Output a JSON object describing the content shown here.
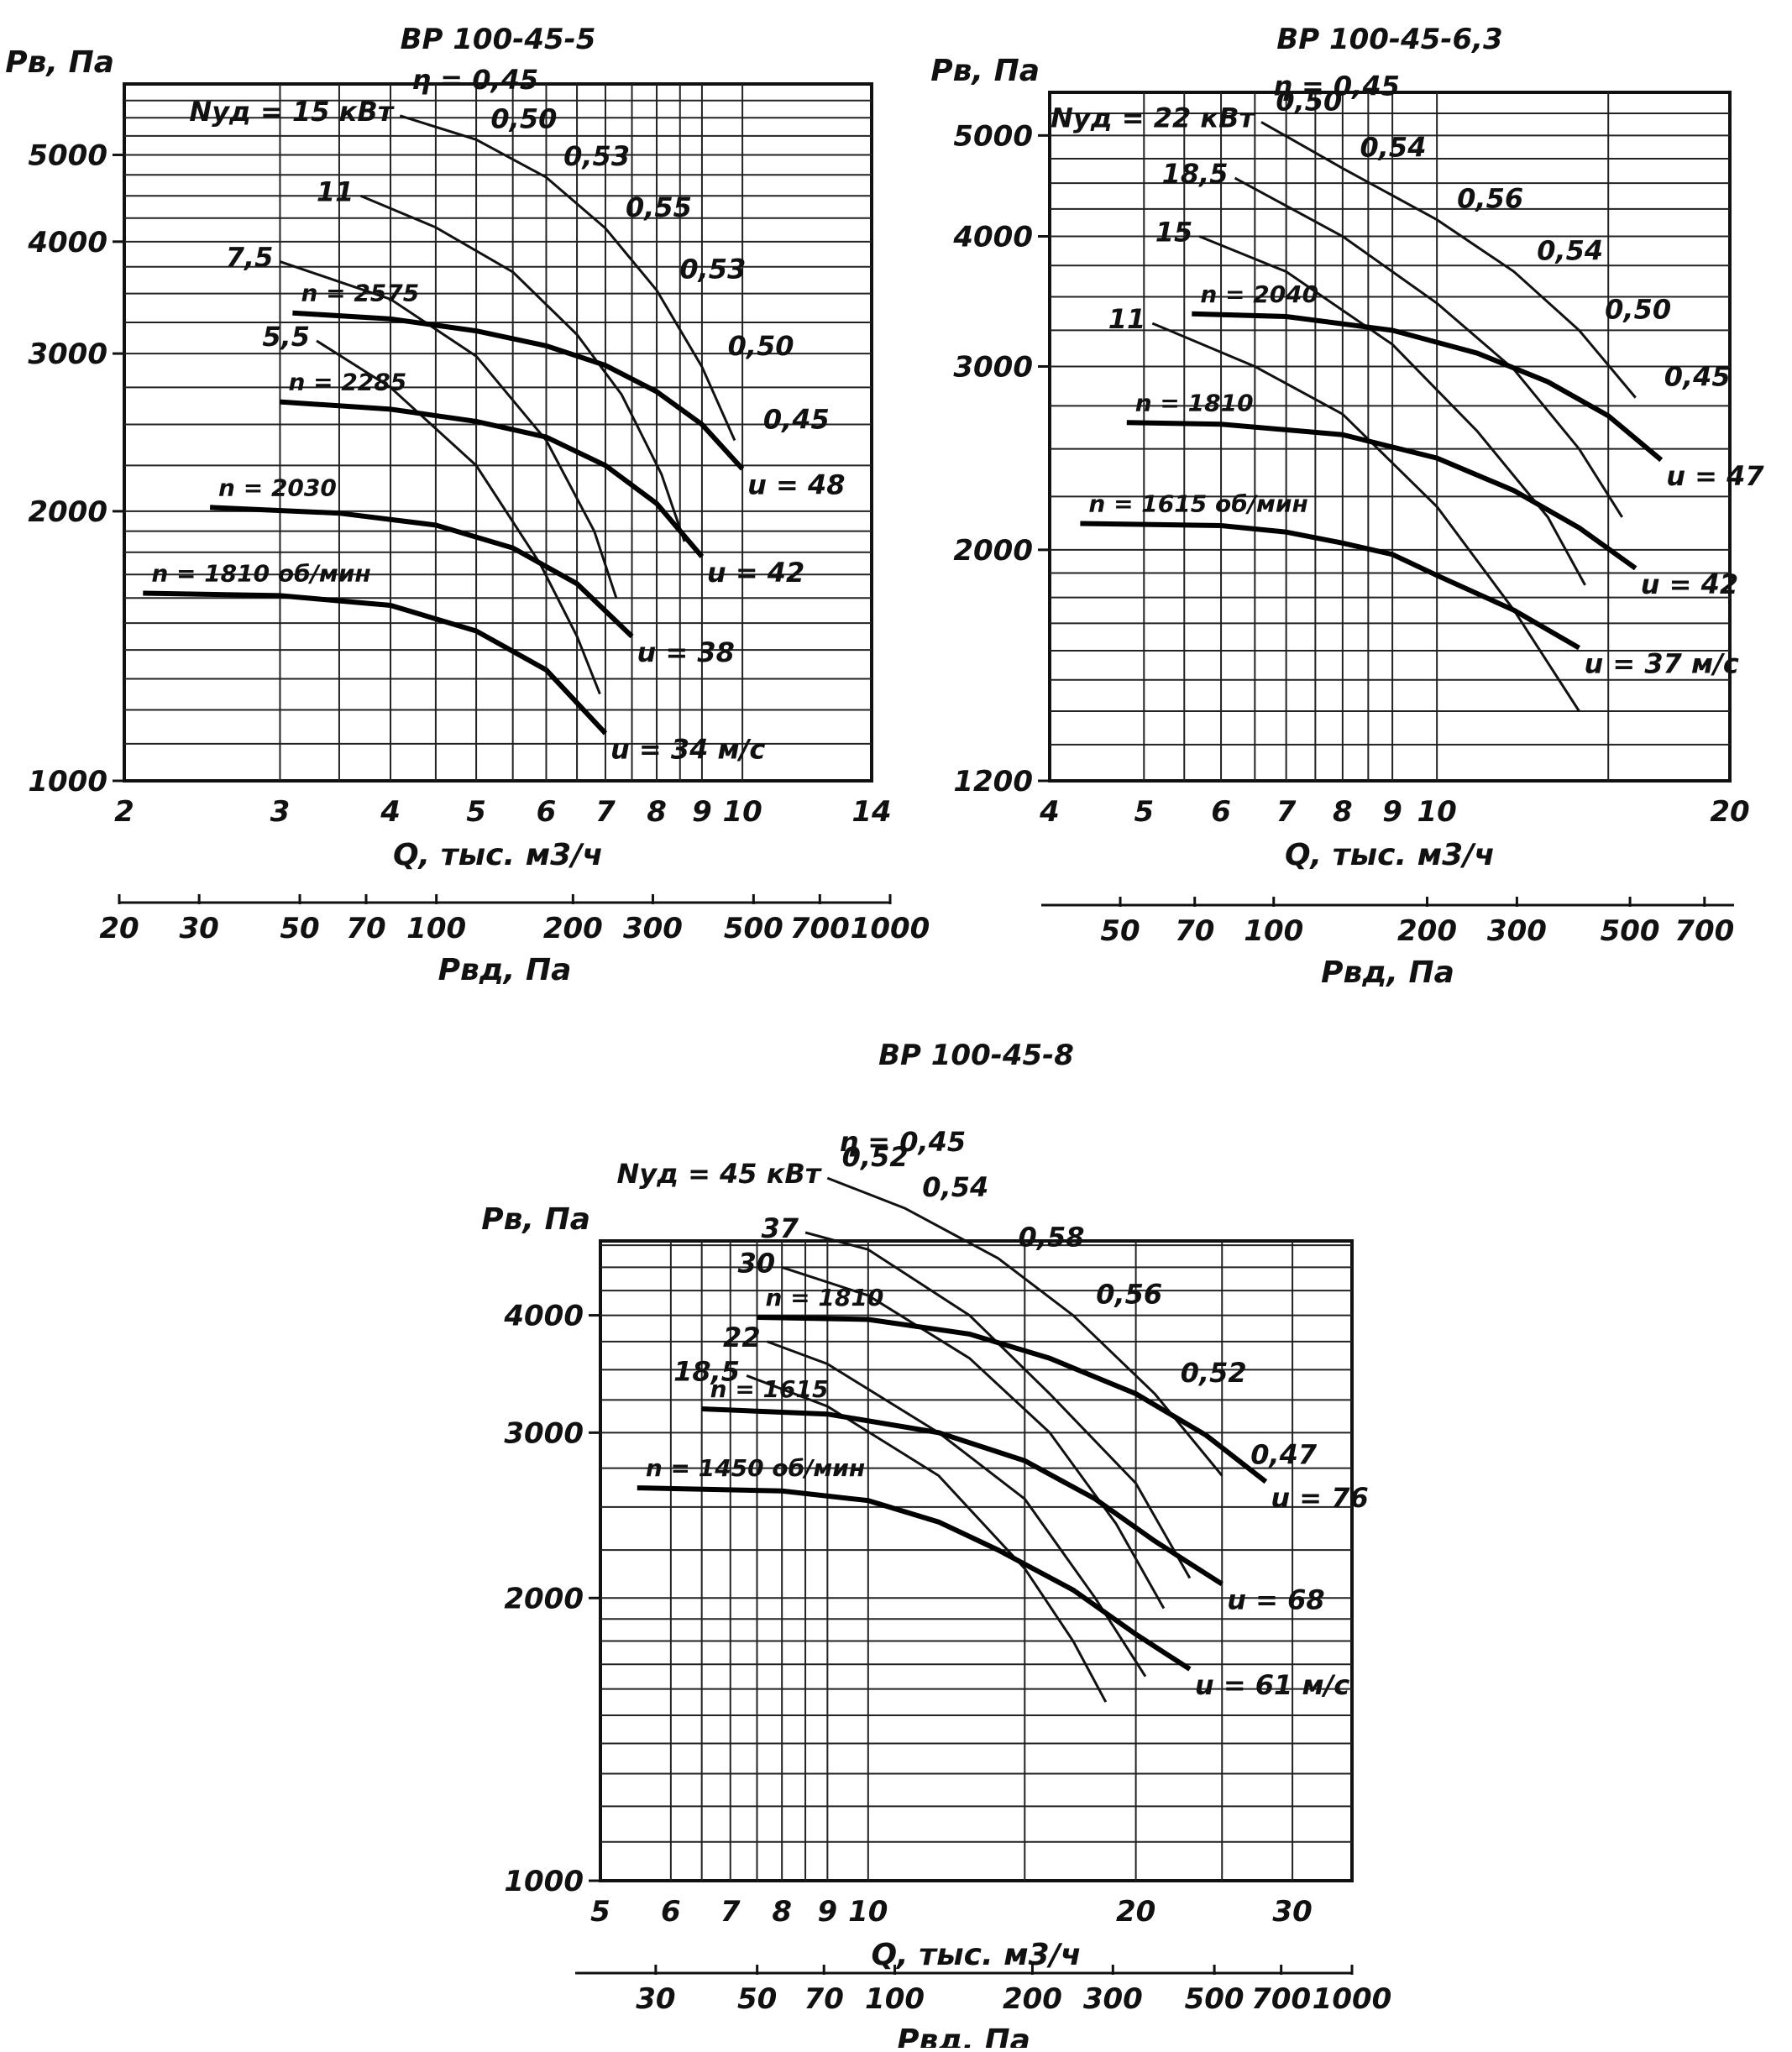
{
  "chart_data": [
    {
      "type": "line",
      "title": "ВР 100-45-5",
      "ylabel": "Pв, Па",
      "xlabel": "Q, тыс. м3/ч",
      "x2label": "Pвд, Па",
      "xscale": "log",
      "yscale": "log",
      "xlim": [
        2,
        14
      ],
      "ylim": [
        1000,
        6000
      ],
      "x_ticks": [
        "2",
        "3",
        "4",
        "5",
        "6",
        "7",
        "8",
        "9",
        "10",
        "14"
      ],
      "y_ticks": [
        "1000",
        "2000",
        "3000",
        "4000",
        "5000"
      ],
      "pvd_ticks": [
        "20",
        "30",
        "50",
        "70",
        "100",
        "200",
        "300",
        "500",
        "700",
        "1000"
      ],
      "series": [
        {
          "name": "n = 1810 об/мин",
          "points": [
            [
              2.1,
              1620
            ],
            [
              3,
              1610
            ],
            [
              4,
              1570
            ],
            [
              5,
              1470
            ],
            [
              6,
              1330
            ],
            [
              7,
              1130
            ]
          ]
        },
        {
          "name": "n = 2030",
          "points": [
            [
              2.5,
              2020
            ],
            [
              3.5,
              1990
            ],
            [
              4.5,
              1930
            ],
            [
              5.5,
              1820
            ],
            [
              6.5,
              1660
            ],
            [
              7.5,
              1450
            ]
          ]
        },
        {
          "name": "n = 2285",
          "points": [
            [
              3,
              2650
            ],
            [
              4,
              2600
            ],
            [
              5,
              2520
            ],
            [
              6,
              2420
            ],
            [
              7,
              2250
            ],
            [
              8,
              2040
            ],
            [
              9,
              1780
            ]
          ]
        },
        {
          "name": "n = 2575",
          "points": [
            [
              3.1,
              3330
            ],
            [
              4,
              3280
            ],
            [
              5,
              3180
            ],
            [
              6,
              3060
            ],
            [
              7,
              2910
            ],
            [
              8,
              2720
            ],
            [
              9,
              2500
            ],
            [
              10,
              2230
            ]
          ]
        }
      ],
      "iso_power": [
        {
          "label": "15",
          "prefix": "Nуд = ",
          "unit": "кВт",
          "points": [
            [
              4.1,
              5530
            ],
            [
              5,
              5200
            ],
            [
              6,
              4720
            ],
            [
              7,
              4140
            ],
            [
              8,
              3530
            ],
            [
              9,
              2900
            ],
            [
              9.8,
              2400
            ]
          ]
        },
        {
          "label": "11",
          "points": [
            [
              3.7,
              4500
            ],
            [
              4.5,
              4150
            ],
            [
              5.5,
              3700
            ],
            [
              6.5,
              3150
            ],
            [
              7.3,
              2700
            ],
            [
              8.1,
              2200
            ],
            [
              8.6,
              1850
            ]
          ]
        },
        {
          "label": "7,5",
          "points": [
            [
              3,
              3800
            ],
            [
              4,
              3450
            ],
            [
              5,
              2980
            ],
            [
              6,
              2400
            ],
            [
              6.8,
              1900
            ],
            [
              7.2,
              1600
            ]
          ]
        },
        {
          "label": "5,5",
          "points": [
            [
              3.3,
              3100
            ],
            [
              4,
              2750
            ],
            [
              5,
              2250
            ],
            [
              5.9,
              1750
            ],
            [
              6.5,
              1450
            ],
            [
              6.9,
              1250
            ]
          ]
        }
      ],
      "iso_efficiency": [
        {
          "label": "0,45",
          "prefix": "η = "
        },
        {
          "label": "0,50"
        },
        {
          "label": "0,53"
        },
        {
          "label": "0,55"
        },
        {
          "label": "0,53"
        },
        {
          "label": "0,50"
        },
        {
          "label": "0,45"
        }
      ],
      "tip_speed": [
        "u = 34 м/с",
        "u = 38",
        "u = 42",
        "u = 48"
      ]
    },
    {
      "type": "line",
      "title": "ВР 100-45-6,3",
      "ylabel": "Pв, Па",
      "xlabel": "Q, тыс. м3/ч",
      "x2label": "Pвд, Па",
      "xscale": "log",
      "yscale": "log",
      "xlim": [
        4,
        20
      ],
      "ylim": [
        1200,
        5500
      ],
      "x_ticks": [
        "4",
        "5",
        "6",
        "7",
        "8",
        "9",
        "10",
        "20"
      ],
      "y_ticks": [
        "1200",
        "2000",
        "3000",
        "4000",
        "5000"
      ],
      "pvd_ticks": [
        "50",
        "70",
        "100",
        "200",
        "300",
        "500",
        "700"
      ],
      "series": [
        {
          "name": "n = 1615 об/мин",
          "points": [
            [
              4.3,
              2120
            ],
            [
              6,
              2110
            ],
            [
              7,
              2080
            ],
            [
              8,
              2030
            ],
            [
              9,
              1980
            ],
            [
              10,
              1890
            ],
            [
              12,
              1750
            ],
            [
              14,
              1610
            ]
          ]
        },
        {
          "name": "n = 1810",
          "points": [
            [
              4.8,
              2650
            ],
            [
              6,
              2640
            ],
            [
              8,
              2580
            ],
            [
              10,
              2450
            ],
            [
              12,
              2280
            ],
            [
              14,
              2100
            ],
            [
              16,
              1920
            ]
          ]
        },
        {
          "name": "n = 2040",
          "points": [
            [
              5.6,
              3370
            ],
            [
              7,
              3350
            ],
            [
              9,
              3250
            ],
            [
              11,
              3090
            ],
            [
              13,
              2900
            ],
            [
              15,
              2690
            ],
            [
              17,
              2440
            ]
          ]
        }
      ],
      "iso_power": [
        {
          "label": "22",
          "prefix": "Nуд = ",
          "unit": "кВт",
          "points": [
            [
              6.6,
              5150
            ],
            [
              8,
              4650
            ],
            [
              10,
              4150
            ],
            [
              12,
              3700
            ],
            [
              14,
              3250
            ],
            [
              16,
              2800
            ]
          ]
        },
        {
          "label": "18,5",
          "points": [
            [
              6.2,
              4550
            ],
            [
              8,
              4000
            ],
            [
              10,
              3450
            ],
            [
              12,
              2980
            ],
            [
              14,
              2500
            ],
            [
              15.5,
              2150
            ]
          ]
        },
        {
          "label": "15",
          "points": [
            [
              5.7,
              4000
            ],
            [
              7,
              3700
            ],
            [
              9,
              3150
            ],
            [
              11,
              2600
            ],
            [
              13,
              2150
            ],
            [
              14.2,
              1850
            ]
          ]
        },
        {
          "label": "11",
          "points": [
            [
              5.1,
              3300
            ],
            [
              6.5,
              3000
            ],
            [
              8,
              2700
            ],
            [
              10,
              2200
            ],
            [
              12,
              1750
            ],
            [
              14,
              1400
            ]
          ]
        }
      ],
      "iso_efficiency": [
        {
          "label": "0,45",
          "prefix": "η = "
        },
        {
          "label": "0,50"
        },
        {
          "label": "0,54"
        },
        {
          "label": "0,56"
        },
        {
          "label": "0,54"
        },
        {
          "label": "0,50"
        },
        {
          "label": "0,45"
        }
      ],
      "tip_speed": [
        "u = 37 м/с",
        "u = 42",
        "u = 47"
      ]
    },
    {
      "type": "line",
      "title": "ВР 100-45-8",
      "ylabel": "Pв, Па",
      "xlabel": "Q, тыс. м3/ч",
      "x2label": "Pвд, Па",
      "xscale": "log",
      "yscale": "log",
      "xlim": [
        5,
        35
      ],
      "ylim": [
        1000,
        4800
      ],
      "x_ticks": [
        "5",
        "6",
        "7",
        "8",
        "9",
        "10",
        "20",
        "30"
      ],
      "y_ticks": [
        "1000",
        "2000",
        "3000",
        "4000"
      ],
      "pvd_ticks": [
        "30",
        "50",
        "70",
        "100",
        "200",
        "300",
        "500",
        "700",
        "1000"
      ],
      "series": [
        {
          "name": "n = 1450 об/мин",
          "points": [
            [
              5.5,
              2620
            ],
            [
              8,
              2600
            ],
            [
              10,
              2540
            ],
            [
              12,
              2410
            ],
            [
              14,
              2250
            ],
            [
              17,
              2040
            ],
            [
              20,
              1830
            ],
            [
              23,
              1680
            ]
          ]
        },
        {
          "name": "n = 1615",
          "points": [
            [
              6.5,
              3180
            ],
            [
              9,
              3140
            ],
            [
              12,
              3000
            ],
            [
              15,
              2800
            ],
            [
              18,
              2550
            ],
            [
              21,
              2300
            ],
            [
              25,
              2070
            ]
          ]
        },
        {
          "name": "n = 1810",
          "points": [
            [
              7.5,
              3980
            ],
            [
              10,
              3960
            ],
            [
              13,
              3820
            ],
            [
              16,
              3600
            ],
            [
              20,
              3300
            ],
            [
              24,
              2980
            ],
            [
              28,
              2660
            ]
          ]
        }
      ],
      "iso_power": [
        {
          "label": "45",
          "prefix": "Nуд = ",
          "unit": "кВт",
          "points": [
            [
              9,
              5600
            ],
            [
              11,
              5200
            ],
            [
              14,
              4600
            ],
            [
              17,
              4000
            ],
            [
              21,
              3300
            ],
            [
              25,
              2700
            ]
          ]
        },
        {
          "label": "37",
          "points": [
            [
              8.5,
              4900
            ],
            [
              10,
              4700
            ],
            [
              13,
              4000
            ],
            [
              16,
              3300
            ],
            [
              20,
              2650
            ],
            [
              23,
              2100
            ]
          ]
        },
        {
          "label": "30",
          "points": [
            [
              8,
              4500
            ],
            [
              10,
              4200
            ],
            [
              13,
              3600
            ],
            [
              16,
              3000
            ],
            [
              19,
              2400
            ],
            [
              21.5,
              1950
            ]
          ]
        },
        {
          "label": "22",
          "points": [
            [
              7.7,
              3750
            ],
            [
              9,
              3550
            ],
            [
              12,
              3000
            ],
            [
              15,
              2550
            ],
            [
              18,
              2000
            ],
            [
              20.5,
              1650
            ]
          ]
        },
        {
          "label": "18,5",
          "points": [
            [
              7.3,
              3450
            ],
            [
              9,
              3200
            ],
            [
              12,
              2700
            ],
            [
              15,
              2150
            ],
            [
              17,
              1800
            ],
            [
              18.5,
              1550
            ]
          ]
        }
      ],
      "iso_efficiency": [
        {
          "label": "0,45",
          "prefix": "η = "
        },
        {
          "label": "0,52"
        },
        {
          "label": "0,54"
        },
        {
          "label": "0,58"
        },
        {
          "label": "0,56"
        },
        {
          "label": "0,52"
        },
        {
          "label": "0,47"
        }
      ],
      "tip_speed": [
        "u = 61 м/с",
        "u = 68",
        "u = 76"
      ]
    }
  ]
}
